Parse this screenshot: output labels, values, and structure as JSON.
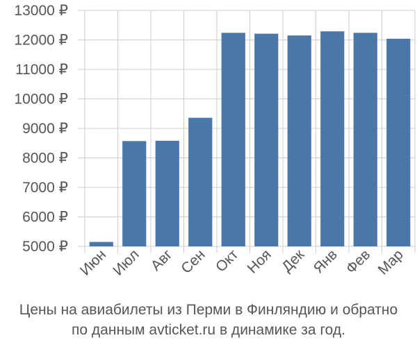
{
  "chart_data": {
    "type": "bar",
    "categories": [
      "Июн",
      "Июл",
      "Авг",
      "Сен",
      "Окт",
      "Ноя",
      "Дек",
      "Янв",
      "Фев",
      "Мар"
    ],
    "values": [
      5150,
      8570,
      8580,
      9360,
      12240,
      12210,
      12150,
      12290,
      12240,
      12040
    ],
    "y_tick_labels": [
      "5000 ₽",
      "6000 ₽",
      "7000 ₽",
      "8000 ₽",
      "9000 ₽",
      "10000 ₽",
      "11000 ₽",
      "12000 ₽",
      "13000 ₽"
    ],
    "y_ticks": [
      5000,
      6000,
      7000,
      8000,
      9000,
      10000,
      11000,
      12000,
      13000
    ],
    "ylim": [
      5000,
      13000
    ],
    "grid": true,
    "bar_color": "#4a76a8",
    "caption_line1": "Цены на авиабилеты из Перми в Финляндию и обратно",
    "caption_line2": "по данным avticket.ru в динамике за год."
  }
}
